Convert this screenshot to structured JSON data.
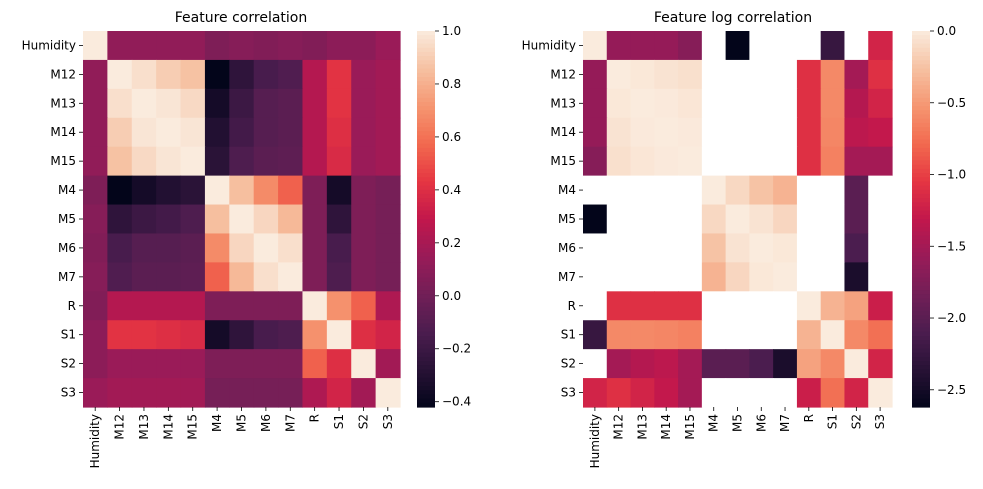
{
  "chart_data": [
    {
      "type": "heatmap",
      "title": "Feature correlation",
      "labels": [
        "Humidity",
        "M12",
        "M13",
        "M14",
        "M15",
        "M4",
        "M5",
        "M6",
        "M7",
        "R",
        "S1",
        "S2",
        "S3"
      ],
      "colorbar_ticks": [
        1.0,
        0.8,
        0.6,
        0.4,
        0.2,
        0.0,
        -0.2,
        -0.4
      ],
      "colorbar_tick_labels": [
        "1.0",
        "0.8",
        "0.6",
        "0.4",
        "0.2",
        "0.0",
        "−0.2",
        "−0.4"
      ],
      "vmin": -0.42,
      "vmax": 1.0,
      "values": [
        [
          1.0,
          0.12,
          0.12,
          0.12,
          0.12,
          0.05,
          0.08,
          0.06,
          0.08,
          0.06,
          0.1,
          0.1,
          0.15
        ],
        [
          0.12,
          1.0,
          0.96,
          0.9,
          0.86,
          -0.42,
          -0.25,
          -0.15,
          -0.12,
          0.24,
          0.42,
          0.15,
          0.18
        ],
        [
          0.12,
          0.96,
          1.0,
          0.98,
          0.94,
          -0.35,
          -0.2,
          -0.1,
          -0.08,
          0.24,
          0.42,
          0.15,
          0.18
        ],
        [
          0.12,
          0.9,
          0.98,
          1.0,
          0.98,
          -0.3,
          -0.17,
          -0.1,
          -0.08,
          0.24,
          0.4,
          0.15,
          0.18
        ],
        [
          0.12,
          0.86,
          0.94,
          0.98,
          1.0,
          -0.27,
          -0.13,
          -0.08,
          -0.07,
          0.24,
          0.38,
          0.15,
          0.18
        ],
        [
          0.05,
          -0.42,
          -0.35,
          -0.3,
          -0.27,
          1.0,
          0.85,
          0.68,
          0.55,
          0.05,
          -0.35,
          0.05,
          0.02
        ],
        [
          0.08,
          -0.25,
          -0.2,
          -0.17,
          -0.13,
          0.85,
          1.0,
          0.93,
          0.83,
          0.05,
          -0.25,
          0.05,
          0.02
        ],
        [
          0.06,
          -0.15,
          -0.1,
          -0.1,
          -0.08,
          0.68,
          0.93,
          1.0,
          0.96,
          0.05,
          -0.15,
          0.05,
          0.02
        ],
        [
          0.08,
          -0.12,
          -0.08,
          -0.08,
          -0.07,
          0.55,
          0.83,
          0.96,
          1.0,
          0.05,
          -0.13,
          0.05,
          0.02
        ],
        [
          0.06,
          0.24,
          0.24,
          0.24,
          0.24,
          0.05,
          0.05,
          0.05,
          0.05,
          1.0,
          0.7,
          0.55,
          0.22
        ],
        [
          0.1,
          0.42,
          0.42,
          0.4,
          0.38,
          -0.35,
          -0.25,
          -0.15,
          -0.13,
          0.7,
          1.0,
          0.4,
          0.35
        ],
        [
          0.1,
          0.15,
          0.15,
          0.15,
          0.15,
          0.05,
          0.05,
          0.05,
          0.05,
          0.55,
          0.4,
          1.0,
          0.18
        ],
        [
          0.15,
          0.18,
          0.18,
          0.18,
          0.18,
          0.02,
          0.02,
          0.02,
          0.02,
          0.22,
          0.35,
          0.18,
          1.0
        ]
      ]
    },
    {
      "type": "heatmap",
      "title": "Feature log correlation",
      "labels": [
        "Humidity",
        "M12",
        "M13",
        "M14",
        "M15",
        "M4",
        "M5",
        "M6",
        "M7",
        "R",
        "S1",
        "S2",
        "S3"
      ],
      "colorbar_ticks": [
        0.0,
        -0.5,
        -1.0,
        -1.5,
        -2.0,
        -2.5
      ],
      "colorbar_tick_labels": [
        "0.0",
        "−0.5",
        "−1.0",
        "−1.5",
        "−2.0",
        "−2.5"
      ],
      "vmin": -2.62,
      "vmax": 0.0,
      "missing_values": "null cells are blank (white)",
      "values": [
        [
          0.0,
          -1.6,
          -1.6,
          -1.6,
          -1.7,
          null,
          -2.62,
          null,
          null,
          null,
          -2.25,
          null,
          -1.2
        ],
        [
          -1.6,
          0.0,
          -0.02,
          -0.05,
          -0.07,
          null,
          null,
          null,
          null,
          -1.1,
          -0.6,
          -1.5,
          -1.1
        ],
        [
          -1.6,
          -0.02,
          0.0,
          -0.01,
          -0.03,
          null,
          null,
          null,
          null,
          -1.1,
          -0.6,
          -1.4,
          -1.2
        ],
        [
          -1.6,
          -0.05,
          -0.01,
          0.0,
          -0.01,
          null,
          null,
          null,
          null,
          -1.1,
          -0.62,
          -1.35,
          -1.3
        ],
        [
          -1.7,
          -0.07,
          -0.03,
          -0.01,
          0.0,
          null,
          null,
          null,
          null,
          -1.1,
          -0.65,
          -1.5,
          -1.5
        ],
        [
          null,
          null,
          null,
          null,
          null,
          0.0,
          -0.12,
          -0.25,
          -0.35,
          null,
          null,
          -2.0,
          null
        ],
        [
          -2.62,
          null,
          null,
          null,
          null,
          -0.12,
          0.0,
          -0.05,
          -0.13,
          null,
          null,
          -2.0,
          null
        ],
        [
          null,
          null,
          null,
          null,
          null,
          -0.25,
          -0.05,
          0.0,
          -0.02,
          null,
          null,
          -2.1,
          null
        ],
        [
          null,
          null,
          null,
          null,
          null,
          -0.35,
          -0.13,
          -0.02,
          0.0,
          null,
          null,
          -2.45,
          null
        ],
        [
          null,
          -1.1,
          -1.1,
          -1.1,
          -1.1,
          null,
          null,
          null,
          null,
          0.0,
          -0.35,
          -0.45,
          -1.25
        ],
        [
          -2.25,
          -0.6,
          -0.6,
          -0.62,
          -0.65,
          null,
          null,
          null,
          null,
          -0.35,
          0.0,
          -0.6,
          -0.75
        ],
        [
          null,
          -1.5,
          -1.4,
          -1.35,
          -1.5,
          -2.0,
          -2.0,
          -2.1,
          -2.45,
          -0.45,
          -0.6,
          0.0,
          -1.2
        ],
        [
          -1.2,
          -1.1,
          -1.2,
          -1.3,
          -1.5,
          null,
          null,
          null,
          null,
          -1.25,
          -0.75,
          -1.2,
          0.0
        ]
      ]
    }
  ]
}
